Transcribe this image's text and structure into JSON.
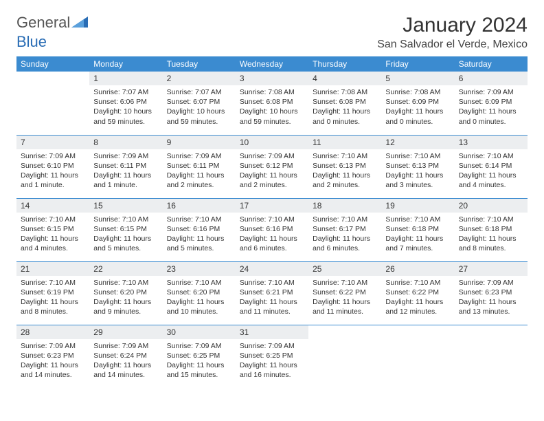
{
  "brand": {
    "textGray": "General",
    "textBlue": "Blue",
    "grayColor": "#777777",
    "blueColor": "#2a6db5"
  },
  "title": "January 2024",
  "location": "San Salvador el Verde, Mexico",
  "colors": {
    "headerBg": "#3b8bd0",
    "headerText": "#ffffff",
    "dayNumBg": "#eceef0",
    "ruleColor": "#3b8bd0",
    "bodyText": "#333333"
  },
  "dayNames": [
    "Sunday",
    "Monday",
    "Tuesday",
    "Wednesday",
    "Thursday",
    "Friday",
    "Saturday"
  ],
  "weeks": [
    [
      {
        "n": "",
        "s": "",
        "t": "",
        "d": "",
        "empty": true
      },
      {
        "n": "1",
        "s": "Sunrise: 7:07 AM",
        "t": "Sunset: 6:06 PM",
        "d": "Daylight: 10 hours and 59 minutes."
      },
      {
        "n": "2",
        "s": "Sunrise: 7:07 AM",
        "t": "Sunset: 6:07 PM",
        "d": "Daylight: 10 hours and 59 minutes."
      },
      {
        "n": "3",
        "s": "Sunrise: 7:08 AM",
        "t": "Sunset: 6:08 PM",
        "d": "Daylight: 10 hours and 59 minutes."
      },
      {
        "n": "4",
        "s": "Sunrise: 7:08 AM",
        "t": "Sunset: 6:08 PM",
        "d": "Daylight: 11 hours and 0 minutes."
      },
      {
        "n": "5",
        "s": "Sunrise: 7:08 AM",
        "t": "Sunset: 6:09 PM",
        "d": "Daylight: 11 hours and 0 minutes."
      },
      {
        "n": "6",
        "s": "Sunrise: 7:09 AM",
        "t": "Sunset: 6:09 PM",
        "d": "Daylight: 11 hours and 0 minutes."
      }
    ],
    [
      {
        "n": "7",
        "s": "Sunrise: 7:09 AM",
        "t": "Sunset: 6:10 PM",
        "d": "Daylight: 11 hours and 1 minute."
      },
      {
        "n": "8",
        "s": "Sunrise: 7:09 AM",
        "t": "Sunset: 6:11 PM",
        "d": "Daylight: 11 hours and 1 minute."
      },
      {
        "n": "9",
        "s": "Sunrise: 7:09 AM",
        "t": "Sunset: 6:11 PM",
        "d": "Daylight: 11 hours and 2 minutes."
      },
      {
        "n": "10",
        "s": "Sunrise: 7:09 AM",
        "t": "Sunset: 6:12 PM",
        "d": "Daylight: 11 hours and 2 minutes."
      },
      {
        "n": "11",
        "s": "Sunrise: 7:10 AM",
        "t": "Sunset: 6:13 PM",
        "d": "Daylight: 11 hours and 2 minutes."
      },
      {
        "n": "12",
        "s": "Sunrise: 7:10 AM",
        "t": "Sunset: 6:13 PM",
        "d": "Daylight: 11 hours and 3 minutes."
      },
      {
        "n": "13",
        "s": "Sunrise: 7:10 AM",
        "t": "Sunset: 6:14 PM",
        "d": "Daylight: 11 hours and 4 minutes."
      }
    ],
    [
      {
        "n": "14",
        "s": "Sunrise: 7:10 AM",
        "t": "Sunset: 6:15 PM",
        "d": "Daylight: 11 hours and 4 minutes."
      },
      {
        "n": "15",
        "s": "Sunrise: 7:10 AM",
        "t": "Sunset: 6:15 PM",
        "d": "Daylight: 11 hours and 5 minutes."
      },
      {
        "n": "16",
        "s": "Sunrise: 7:10 AM",
        "t": "Sunset: 6:16 PM",
        "d": "Daylight: 11 hours and 5 minutes."
      },
      {
        "n": "17",
        "s": "Sunrise: 7:10 AM",
        "t": "Sunset: 6:16 PM",
        "d": "Daylight: 11 hours and 6 minutes."
      },
      {
        "n": "18",
        "s": "Sunrise: 7:10 AM",
        "t": "Sunset: 6:17 PM",
        "d": "Daylight: 11 hours and 6 minutes."
      },
      {
        "n": "19",
        "s": "Sunrise: 7:10 AM",
        "t": "Sunset: 6:18 PM",
        "d": "Daylight: 11 hours and 7 minutes."
      },
      {
        "n": "20",
        "s": "Sunrise: 7:10 AM",
        "t": "Sunset: 6:18 PM",
        "d": "Daylight: 11 hours and 8 minutes."
      }
    ],
    [
      {
        "n": "21",
        "s": "Sunrise: 7:10 AM",
        "t": "Sunset: 6:19 PM",
        "d": "Daylight: 11 hours and 8 minutes."
      },
      {
        "n": "22",
        "s": "Sunrise: 7:10 AM",
        "t": "Sunset: 6:20 PM",
        "d": "Daylight: 11 hours and 9 minutes."
      },
      {
        "n": "23",
        "s": "Sunrise: 7:10 AM",
        "t": "Sunset: 6:20 PM",
        "d": "Daylight: 11 hours and 10 minutes."
      },
      {
        "n": "24",
        "s": "Sunrise: 7:10 AM",
        "t": "Sunset: 6:21 PM",
        "d": "Daylight: 11 hours and 11 minutes."
      },
      {
        "n": "25",
        "s": "Sunrise: 7:10 AM",
        "t": "Sunset: 6:22 PM",
        "d": "Daylight: 11 hours and 11 minutes."
      },
      {
        "n": "26",
        "s": "Sunrise: 7:10 AM",
        "t": "Sunset: 6:22 PM",
        "d": "Daylight: 11 hours and 12 minutes."
      },
      {
        "n": "27",
        "s": "Sunrise: 7:09 AM",
        "t": "Sunset: 6:23 PM",
        "d": "Daylight: 11 hours and 13 minutes."
      }
    ],
    [
      {
        "n": "28",
        "s": "Sunrise: 7:09 AM",
        "t": "Sunset: 6:23 PM",
        "d": "Daylight: 11 hours and 14 minutes."
      },
      {
        "n": "29",
        "s": "Sunrise: 7:09 AM",
        "t": "Sunset: 6:24 PM",
        "d": "Daylight: 11 hours and 14 minutes."
      },
      {
        "n": "30",
        "s": "Sunrise: 7:09 AM",
        "t": "Sunset: 6:25 PM",
        "d": "Daylight: 11 hours and 15 minutes."
      },
      {
        "n": "31",
        "s": "Sunrise: 7:09 AM",
        "t": "Sunset: 6:25 PM",
        "d": "Daylight: 11 hours and 16 minutes."
      },
      {
        "n": "",
        "s": "",
        "t": "",
        "d": "",
        "empty": true
      },
      {
        "n": "",
        "s": "",
        "t": "",
        "d": "",
        "empty": true
      },
      {
        "n": "",
        "s": "",
        "t": "",
        "d": "",
        "empty": true
      }
    ]
  ]
}
